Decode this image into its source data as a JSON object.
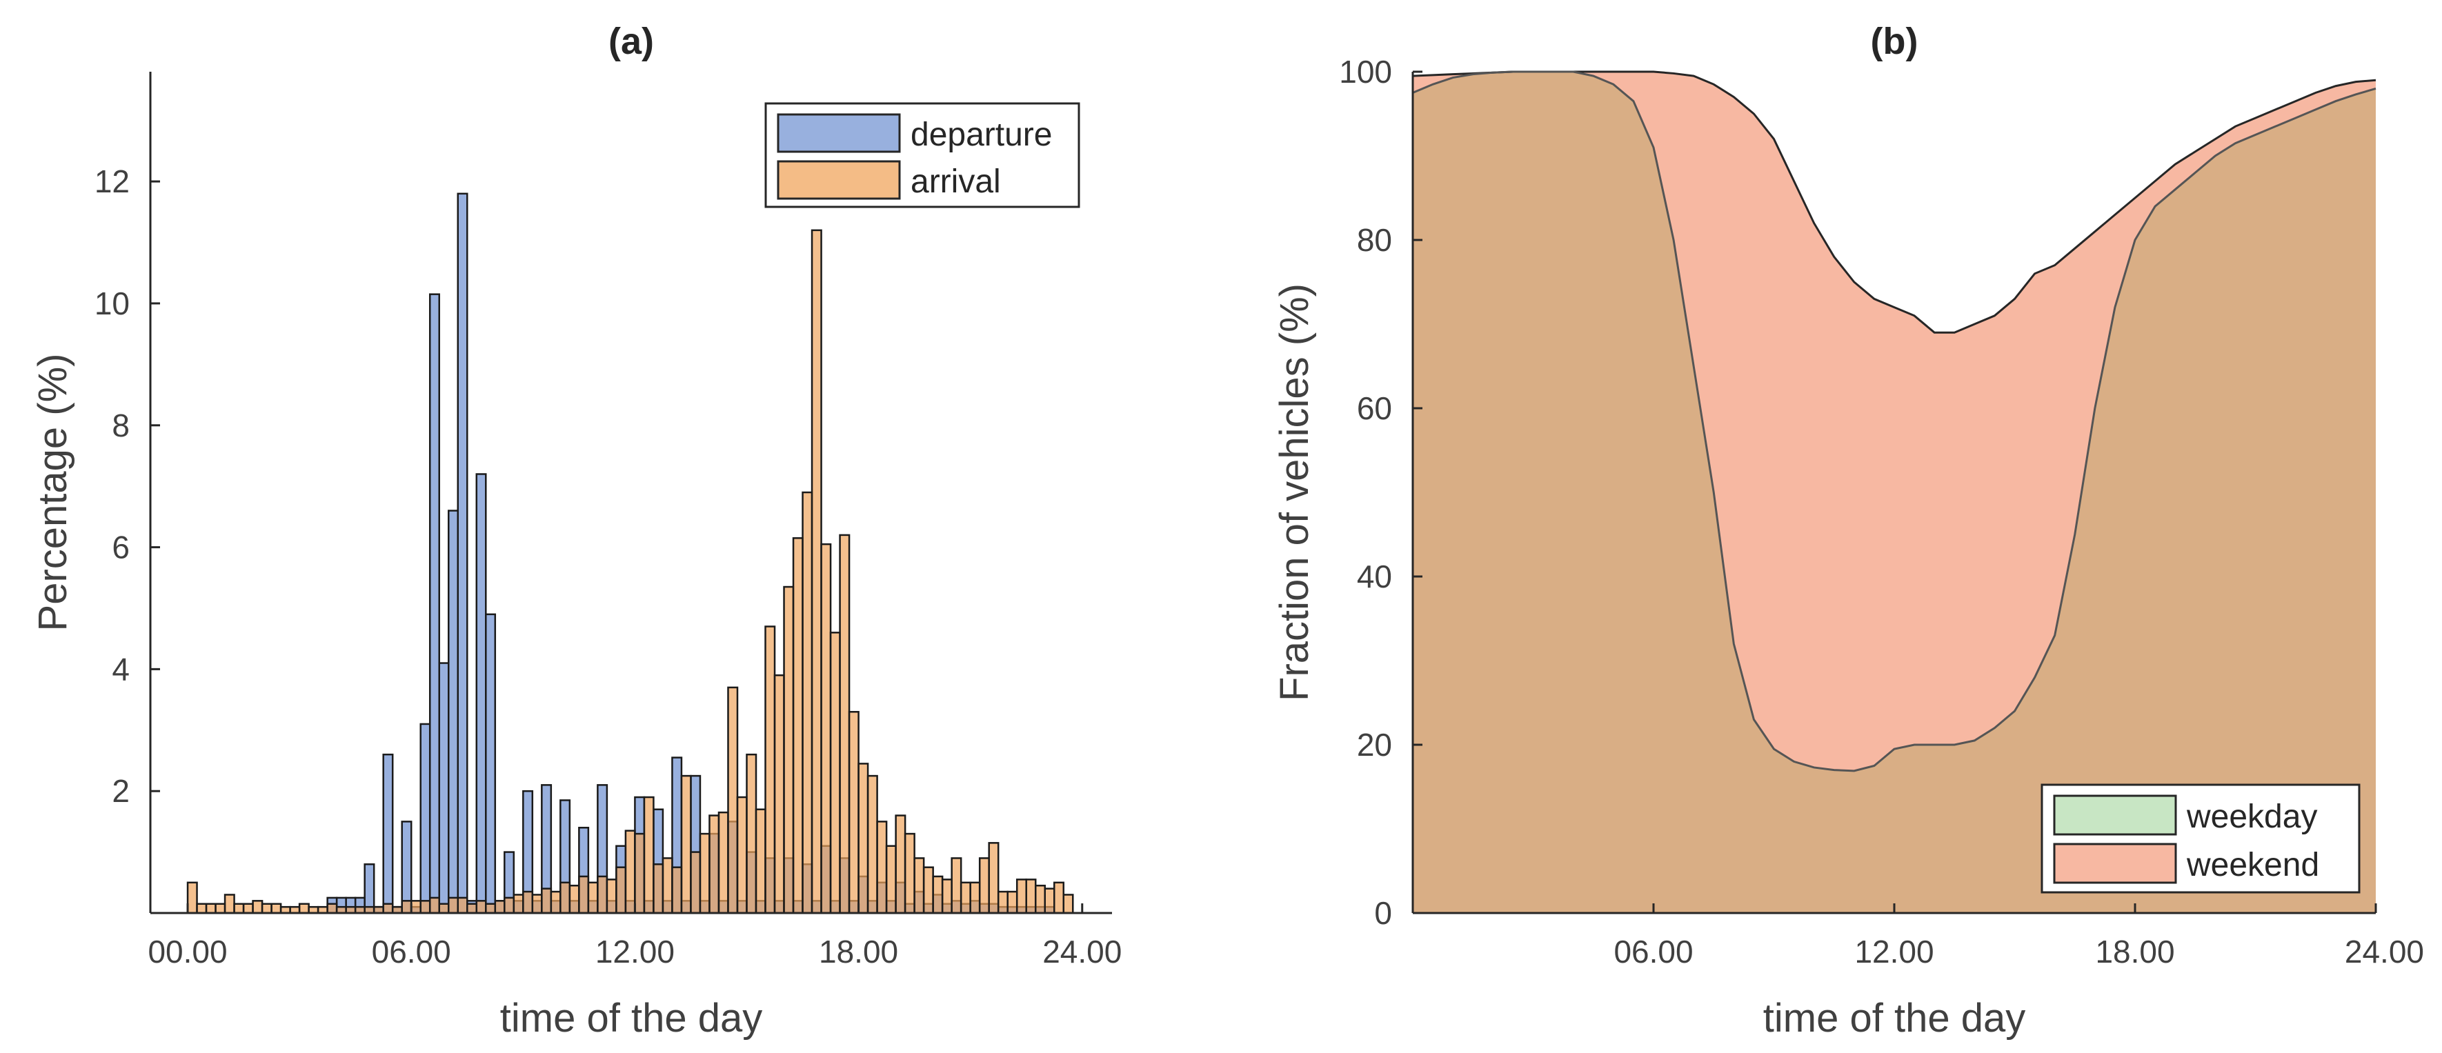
{
  "chart_data": [
    {
      "type": "bar",
      "panel": "a",
      "title": "(a)",
      "xlabel": "time of the day",
      "ylabel": "Percentage (%)",
      "xlim": [
        -1,
        24.8
      ],
      "ylim": [
        0,
        13.8
      ],
      "xticks": [
        0,
        6,
        12,
        18,
        24
      ],
      "xtick_labels": [
        "00.00",
        "06.00",
        "12.00",
        "18.00",
        "24.00"
      ],
      "yticks": [
        2,
        4,
        6,
        8,
        10,
        12
      ],
      "ytick_labels": [
        "2",
        "4",
        "6",
        "8",
        "10",
        "12"
      ],
      "bin_width_hours": 0.25,
      "grid": false,
      "legend_position": "top-right",
      "series": [
        {
          "name": "departure",
          "color": "#7E9CD6",
          "bins": [
            [
              3.75,
              0.25
            ],
            [
              4.0,
              0.25
            ],
            [
              4.25,
              0.25
            ],
            [
              4.5,
              0.25
            ],
            [
              4.75,
              0.8
            ],
            [
              5.0,
              0.1
            ],
            [
              5.25,
              2.6
            ],
            [
              5.5,
              0.1
            ],
            [
              5.75,
              1.5
            ],
            [
              6.0,
              0.1
            ],
            [
              6.25,
              3.1
            ],
            [
              6.5,
              10.15
            ],
            [
              6.75,
              4.1
            ],
            [
              7.0,
              6.6
            ],
            [
              7.25,
              11.8
            ],
            [
              7.5,
              0.2
            ],
            [
              7.75,
              7.2
            ],
            [
              8.0,
              4.9
            ],
            [
              8.25,
              0.2
            ],
            [
              8.5,
              1.0
            ],
            [
              8.75,
              0.2
            ],
            [
              9.0,
              2.0
            ],
            [
              9.25,
              0.2
            ],
            [
              9.5,
              2.1
            ],
            [
              9.75,
              0.2
            ],
            [
              10.0,
              1.85
            ],
            [
              10.25,
              0.2
            ],
            [
              10.5,
              1.4
            ],
            [
              10.75,
              0.2
            ],
            [
              11.0,
              2.1
            ],
            [
              11.25,
              0.2
            ],
            [
              11.5,
              1.1
            ],
            [
              11.75,
              0.2
            ],
            [
              12.0,
              1.9
            ],
            [
              12.25,
              0.2
            ],
            [
              12.5,
              1.7
            ],
            [
              12.75,
              0.2
            ],
            [
              13.0,
              2.55
            ],
            [
              13.25,
              0.2
            ],
            [
              13.5,
              2.25
            ],
            [
              13.75,
              0.2
            ],
            [
              14.0,
              1.3
            ],
            [
              14.25,
              0.2
            ],
            [
              14.5,
              1.5
            ],
            [
              14.75,
              0.2
            ],
            [
              15.0,
              1.0
            ],
            [
              15.25,
              0.2
            ],
            [
              15.5,
              0.9
            ],
            [
              15.75,
              0.2
            ],
            [
              16.0,
              0.9
            ],
            [
              16.25,
              0.2
            ],
            [
              16.5,
              0.8
            ],
            [
              16.75,
              0.2
            ],
            [
              17.0,
              1.1
            ],
            [
              17.25,
              0.2
            ],
            [
              17.5,
              0.9
            ],
            [
              17.75,
              0.2
            ],
            [
              18.0,
              0.6
            ],
            [
              18.25,
              0.2
            ],
            [
              18.5,
              0.5
            ],
            [
              18.75,
              0.2
            ],
            [
              19.0,
              0.5
            ],
            [
              19.25,
              0.15
            ],
            [
              19.5,
              0.35
            ],
            [
              19.75,
              0.15
            ],
            [
              20.0,
              0.3
            ],
            [
              20.25,
              0.15
            ],
            [
              20.5,
              0.2
            ],
            [
              20.75,
              0.15
            ],
            [
              21.0,
              0.2
            ],
            [
              21.25,
              0.15
            ],
            [
              21.5,
              0.15
            ],
            [
              21.75,
              0.1
            ],
            [
              22.0,
              0.1
            ],
            [
              22.25,
              0.1
            ],
            [
              22.5,
              0.1
            ],
            [
              22.75,
              0.1
            ],
            [
              23.0,
              0.1
            ]
          ]
        },
        {
          "name": "arrival",
          "color": "#F0A55E",
          "bins": [
            [
              0.0,
              0.5
            ],
            [
              0.25,
              0.15
            ],
            [
              0.5,
              0.15
            ],
            [
              0.75,
              0.15
            ],
            [
              1.0,
              0.3
            ],
            [
              1.25,
              0.15
            ],
            [
              1.5,
              0.15
            ],
            [
              1.75,
              0.2
            ],
            [
              2.0,
              0.15
            ],
            [
              2.25,
              0.15
            ],
            [
              2.5,
              0.1
            ],
            [
              2.75,
              0.1
            ],
            [
              3.0,
              0.15
            ],
            [
              3.25,
              0.1
            ],
            [
              3.5,
              0.1
            ],
            [
              3.75,
              0.15
            ],
            [
              4.0,
              0.1
            ],
            [
              4.25,
              0.1
            ],
            [
              4.5,
              0.1
            ],
            [
              4.75,
              0.1
            ],
            [
              5.0,
              0.1
            ],
            [
              5.25,
              0.15
            ],
            [
              5.5,
              0.1
            ],
            [
              5.75,
              0.2
            ],
            [
              6.0,
              0.2
            ],
            [
              6.25,
              0.2
            ],
            [
              6.5,
              0.25
            ],
            [
              6.75,
              0.15
            ],
            [
              7.0,
              0.25
            ],
            [
              7.25,
              0.25
            ],
            [
              7.5,
              0.15
            ],
            [
              7.75,
              0.2
            ],
            [
              8.0,
              0.15
            ],
            [
              8.25,
              0.2
            ],
            [
              8.5,
              0.25
            ],
            [
              8.75,
              0.3
            ],
            [
              9.0,
              0.35
            ],
            [
              9.25,
              0.3
            ],
            [
              9.5,
              0.4
            ],
            [
              9.75,
              0.35
            ],
            [
              10.0,
              0.5
            ],
            [
              10.25,
              0.45
            ],
            [
              10.5,
              0.6
            ],
            [
              10.75,
              0.5
            ],
            [
              11.0,
              0.6
            ],
            [
              11.25,
              0.55
            ],
            [
              11.5,
              0.75
            ],
            [
              11.75,
              1.35
            ],
            [
              12.0,
              1.3
            ],
            [
              12.25,
              1.9
            ],
            [
              12.5,
              0.8
            ],
            [
              12.75,
              0.9
            ],
            [
              13.0,
              0.75
            ],
            [
              13.25,
              2.25
            ],
            [
              13.5,
              1.0
            ],
            [
              13.75,
              1.3
            ],
            [
              14.0,
              1.6
            ],
            [
              14.25,
              1.65
            ],
            [
              14.5,
              3.7
            ],
            [
              14.75,
              1.9
            ],
            [
              15.0,
              2.6
            ],
            [
              15.25,
              1.7
            ],
            [
              15.5,
              4.7
            ],
            [
              15.75,
              3.9
            ],
            [
              16.0,
              5.35
            ],
            [
              16.25,
              6.15
            ],
            [
              16.5,
              6.9
            ],
            [
              16.75,
              11.2
            ],
            [
              17.0,
              6.05
            ],
            [
              17.25,
              4.6
            ],
            [
              17.5,
              6.2
            ],
            [
              17.75,
              3.3
            ],
            [
              18.0,
              2.45
            ],
            [
              18.25,
              2.25
            ],
            [
              18.5,
              1.5
            ],
            [
              18.75,
              1.1
            ],
            [
              19.0,
              1.6
            ],
            [
              19.25,
              1.3
            ],
            [
              19.5,
              0.9
            ],
            [
              19.75,
              0.75
            ],
            [
              20.0,
              0.6
            ],
            [
              20.25,
              0.55
            ],
            [
              20.5,
              0.9
            ],
            [
              20.75,
              0.5
            ],
            [
              21.0,
              0.5
            ],
            [
              21.25,
              0.9
            ],
            [
              21.5,
              1.15
            ],
            [
              21.75,
              0.35
            ],
            [
              22.0,
              0.35
            ],
            [
              22.25,
              0.55
            ],
            [
              22.5,
              0.55
            ],
            [
              22.75,
              0.45
            ],
            [
              23.0,
              0.4
            ],
            [
              23.25,
              0.5
            ],
            [
              23.5,
              0.3
            ]
          ]
        }
      ]
    },
    {
      "type": "area",
      "panel": "b",
      "title": "(b)",
      "xlabel": "time of the day",
      "ylabel": "Fraction of vehicles (%)",
      "xlim": [
        0,
        24
      ],
      "ylim": [
        0,
        100
      ],
      "xticks": [
        6,
        12,
        18,
        24
      ],
      "xtick_labels": [
        "06.00",
        "12.00",
        "18.00",
        "24.00"
      ],
      "yticks": [
        0,
        20,
        40,
        60,
        80,
        100
      ],
      "ytick_labels": [
        "0",
        "20",
        "40",
        "60",
        "80",
        "100"
      ],
      "grid": false,
      "legend_position": "bottom-right",
      "series": [
        {
          "name": "weekday",
          "color": "#C8E6C4",
          "x": [
            0,
            0.5,
            1,
            1.5,
            2,
            2.5,
            3,
            3.5,
            4,
            4.5,
            5,
            5.5,
            6,
            6.5,
            7,
            7.5,
            8,
            8.5,
            9,
            9.5,
            10,
            10.5,
            11,
            11.5,
            12,
            12.5,
            13,
            13.5,
            14,
            14.5,
            15,
            15.5,
            16,
            16.5,
            17,
            17.5,
            18,
            18.5,
            19,
            19.5,
            20,
            20.5,
            21,
            21.5,
            22,
            22.5,
            23,
            23.5,
            24
          ],
          "y": [
            97.5,
            98.5,
            99.3,
            99.7,
            99.9,
            100,
            100,
            100,
            100,
            99.5,
            98.5,
            96.5,
            91,
            80,
            65,
            50,
            32,
            23,
            19.5,
            18,
            17.3,
            17,
            16.9,
            17.5,
            19.5,
            20,
            20,
            20,
            20.5,
            22,
            24,
            28,
            33,
            45,
            60,
            72,
            80,
            84,
            86,
            88,
            90,
            91.5,
            92.5,
            93.5,
            94.5,
            95.5,
            96.5,
            97.3,
            98
          ]
        },
        {
          "name": "weekend",
          "color": "#F7B8A2",
          "x": [
            0,
            0.5,
            1,
            1.5,
            2,
            2.5,
            3,
            3.5,
            4,
            4.5,
            5,
            5.5,
            6,
            6.5,
            7,
            7.5,
            8,
            8.5,
            9,
            9.5,
            10,
            10.5,
            11,
            11.5,
            12,
            12.5,
            13,
            13.5,
            14,
            14.5,
            15,
            15.5,
            16,
            16.5,
            17,
            17.5,
            18,
            18.5,
            19,
            19.5,
            20,
            20.5,
            21,
            21.5,
            22,
            22.5,
            23,
            23.5,
            24
          ],
          "y": [
            99.5,
            99.6,
            99.7,
            99.8,
            99.9,
            100,
            100,
            100,
            100,
            100,
            100,
            100,
            100,
            99.8,
            99.5,
            98.5,
            97,
            95,
            92,
            87,
            82,
            78,
            75,
            73,
            72,
            71,
            69,
            69,
            70,
            71,
            73,
            76,
            77,
            79,
            81,
            83,
            85,
            87,
            89,
            90.5,
            92,
            93.5,
            94.5,
            95.5,
            96.5,
            97.5,
            98.3,
            98.8,
            99
          ]
        }
      ]
    }
  ]
}
